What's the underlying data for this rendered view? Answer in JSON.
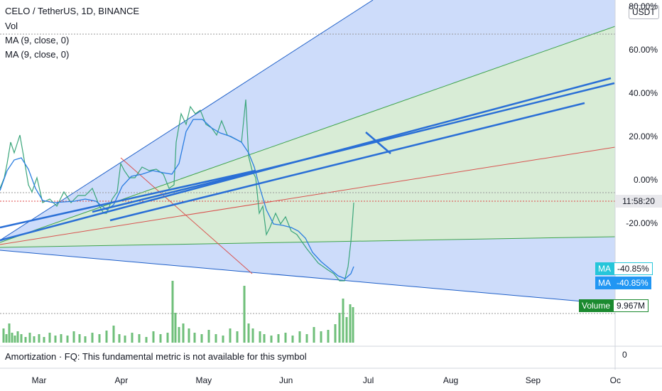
{
  "header": {
    "symbol": "CELO / TetherUS, 1D, BINANCE",
    "indicators": [
      "Vol",
      "MA (9, close, 0)",
      "MA (9, close, 0)"
    ]
  },
  "currency": "USDT",
  "price_axis": [
    "80.00%",
    "60.00%",
    "40.00%",
    "20.00%",
    "0.00%",
    "-20.00%"
  ],
  "time_axis": [
    "Mar",
    "Apr",
    "May",
    "Jun",
    "Jul",
    "Aug",
    "Sep",
    "Oc"
  ],
  "badges": {
    "countdown": "11:58:20",
    "ma1": {
      "name": "MA",
      "value": "-40.85%"
    },
    "ma2": {
      "name": "MA",
      "value": "-40.85%"
    },
    "volume": {
      "name": "Volume",
      "value": "9.967M"
    }
  },
  "pane": {
    "note": "Amortization · FQ: This fundamental metric is not available for this symbol",
    "axis_label": "0"
  }
}
